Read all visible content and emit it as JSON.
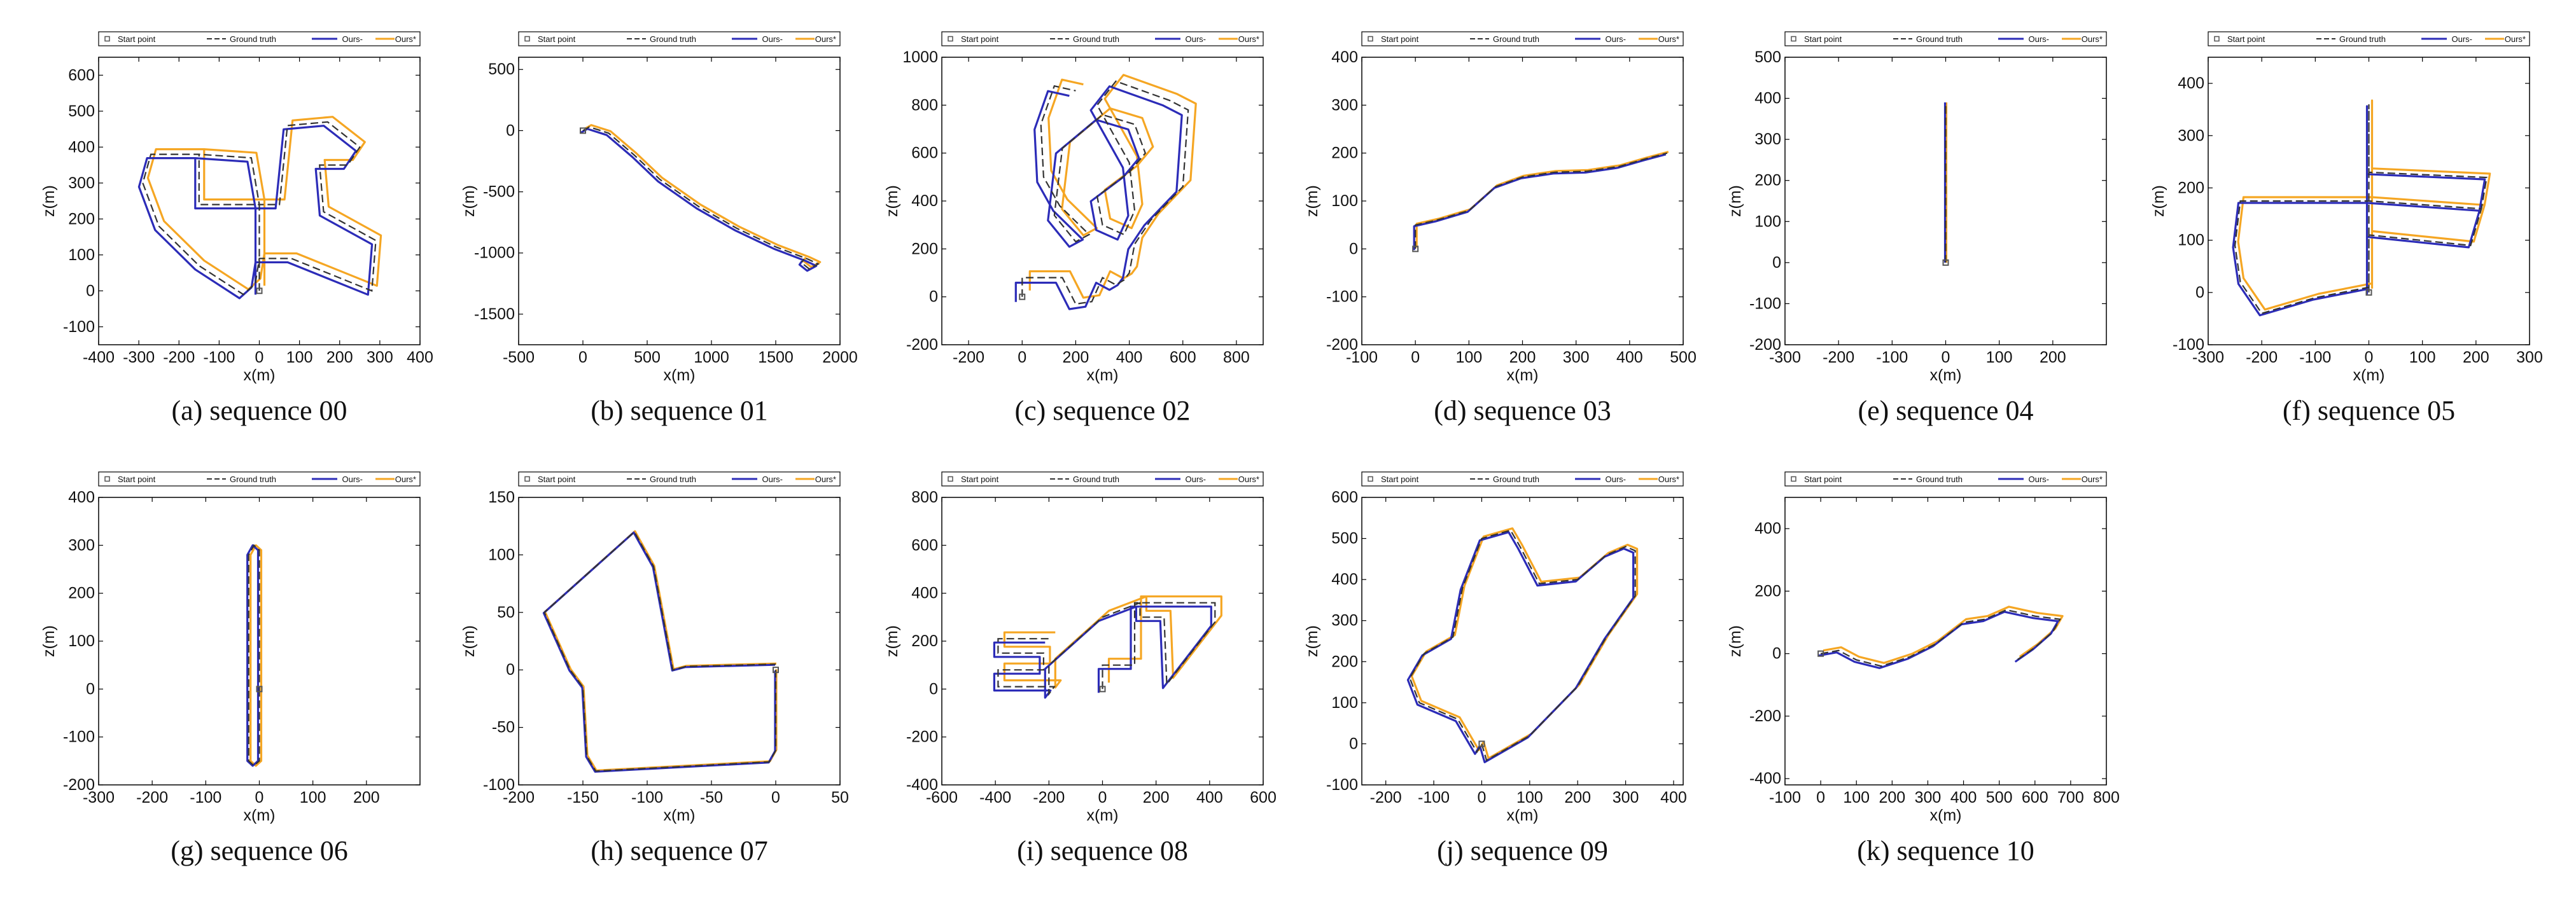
{
  "legend": {
    "start": "Start point",
    "gt": "Ground truth",
    "ours_minus": "Ours-",
    "ours_star": "Ours*"
  },
  "colors": {
    "gt": "#333333",
    "ours_minus": "#2c2cb8",
    "ours_star": "#f5a623",
    "start": "#555555"
  },
  "chart_data": [
    {
      "type": "line",
      "caption": "(a) sequence 00",
      "xlabel": "x(m)",
      "ylabel": "z(m)",
      "xlim": [
        -400,
        400
      ],
      "ylim": [
        -150,
        650
      ],
      "xticks": [
        -400,
        -300,
        -200,
        -100,
        0,
        100,
        200,
        300,
        400
      ],
      "yticks": [
        -100,
        0,
        100,
        200,
        300,
        400,
        500,
        600
      ],
      "start": [
        0,
        0
      ],
      "path": [
        [
          0,
          0
        ],
        [
          0,
          90
        ],
        [
          0,
          240
        ],
        [
          -150,
          240
        ],
        [
          -150,
          380
        ],
        [
          -270,
          380
        ],
        [
          -290,
          300
        ],
        [
          -250,
          180
        ],
        [
          -150,
          70
        ],
        [
          -40,
          -10
        ],
        [
          -10,
          20
        ],
        [
          0,
          90
        ],
        [
          80,
          90
        ],
        [
          280,
          0
        ],
        [
          290,
          140
        ],
        [
          160,
          220
        ],
        [
          150,
          350
        ],
        [
          220,
          350
        ],
        [
          250,
          400
        ],
        [
          170,
          470
        ],
        [
          70,
          460
        ],
        [
          50,
          240
        ],
        [
          0,
          240
        ],
        [
          -20,
          370
        ],
        [
          -150,
          380
        ]
      ],
      "offsets": {
        "ours_minus": [
          -6,
          6
        ],
        "ours_star": [
          8,
          -8
        ]
      }
    },
    {
      "type": "line",
      "caption": "(b) sequence 01",
      "xlabel": "x(m)",
      "ylabel": "z(m)",
      "xlim": [
        -500,
        2000
      ],
      "ylim": [
        -1750,
        600
      ],
      "xticks": [
        -500,
        0,
        500,
        1000,
        1500,
        2000
      ],
      "yticks": [
        -1500,
        -1000,
        -500,
        0,
        500
      ],
      "start": [
        0,
        0
      ],
      "path": [
        [
          0,
          0
        ],
        [
          50,
          30
        ],
        [
          200,
          -20
        ],
        [
          400,
          -200
        ],
        [
          600,
          -400
        ],
        [
          900,
          -620
        ],
        [
          1200,
          -800
        ],
        [
          1500,
          -950
        ],
        [
          1750,
          -1050
        ],
        [
          1830,
          -1090
        ],
        [
          1760,
          -1130
        ],
        [
          1700,
          -1080
        ],
        [
          1720,
          -1050
        ]
      ],
      "offsets": {
        "ours_minus": [
          -3,
          3
        ],
        "ours_star": [
          3,
          -3
        ]
      }
    },
    {
      "type": "line",
      "caption": "(c) sequence 02",
      "xlabel": "x(m)",
      "ylabel": "z(m)",
      "xlim": [
        -300,
        900
      ],
      "ylim": [
        -200,
        1000
      ],
      "xticks": [
        -200,
        0,
        200,
        400,
        600,
        800
      ],
      "yticks": [
        -200,
        0,
        200,
        400,
        600,
        800,
        1000
      ],
      "start": [
        0,
        0
      ],
      "path": [
        [
          0,
          0
        ],
        [
          0,
          80
        ],
        [
          150,
          80
        ],
        [
          200,
          -30
        ],
        [
          260,
          -20
        ],
        [
          300,
          80
        ],
        [
          350,
          50
        ],
        [
          380,
          70
        ],
        [
          400,
          100
        ],
        [
          420,
          220
        ],
        [
          480,
          320
        ],
        [
          600,
          460
        ],
        [
          620,
          780
        ],
        [
          550,
          820
        ],
        [
          350,
          900
        ],
        [
          280,
          800
        ],
        [
          400,
          560
        ],
        [
          420,
          360
        ],
        [
          380,
          260
        ],
        [
          300,
          300
        ],
        [
          280,
          420
        ],
        [
          400,
          520
        ],
        [
          460,
          600
        ],
        [
          420,
          720
        ],
        [
          300,
          760
        ],
        [
          150,
          620
        ],
        [
          120,
          340
        ],
        [
          200,
          230
        ],
        [
          250,
          260
        ],
        [
          140,
          380
        ],
        [
          80,
          500
        ],
        [
          70,
          720
        ],
        [
          120,
          880
        ],
        [
          200,
          860
        ]
      ],
      "offsets": {
        "ours_minus": [
          -10,
          8
        ],
        "ours_star": [
          12,
          -10
        ]
      }
    },
    {
      "type": "line",
      "caption": "(d) sequence 03",
      "xlabel": "x(m)",
      "ylabel": "z(m)",
      "xlim": [
        -100,
        500
      ],
      "ylim": [
        -200,
        400
      ],
      "xticks": [
        -100,
        0,
        100,
        200,
        300,
        400,
        500
      ],
      "yticks": [
        -200,
        -100,
        0,
        100,
        200,
        300,
        400
      ],
      "start": [
        0,
        0
      ],
      "path": [
        [
          0,
          0
        ],
        [
          0,
          50
        ],
        [
          40,
          60
        ],
        [
          100,
          80
        ],
        [
          150,
          130
        ],
        [
          200,
          150
        ],
        [
          260,
          160
        ],
        [
          320,
          162
        ],
        [
          380,
          172
        ],
        [
          430,
          188
        ],
        [
          470,
          200
        ]
      ],
      "offsets": {
        "ours_minus": [
          -2,
          2
        ],
        "ours_star": [
          2,
          -2
        ]
      }
    },
    {
      "type": "line",
      "caption": "(e) sequence 04",
      "xlabel": "x(m)",
      "ylabel": "z(m)",
      "xlim": [
        -300,
        300
      ],
      "ylim": [
        -200,
        500
      ],
      "xticks": [
        -300,
        -200,
        -100,
        0,
        100,
        200
      ],
      "yticks": [
        -200,
        -100,
        0,
        100,
        200,
        300,
        400,
        500
      ],
      "start": [
        0,
        0
      ],
      "path": [
        [
          0,
          0
        ],
        [
          0,
          100
        ],
        [
          0,
          200
        ],
        [
          0,
          300
        ],
        [
          0,
          390
        ]
      ],
      "offsets": {
        "ours_minus": [
          -1,
          0
        ],
        "ours_star": [
          1,
          0
        ]
      }
    },
    {
      "type": "line",
      "caption": "(f) sequence 05",
      "xlabel": "x(m)",
      "ylabel": "z(m)",
      "xlim": [
        -300,
        300
      ],
      "ylim": [
        -100,
        450
      ],
      "xticks": [
        -300,
        -200,
        -100,
        0,
        100,
        200,
        300
      ],
      "yticks": [
        -100,
        0,
        100,
        200,
        300,
        400
      ],
      "start": [
        0,
        0
      ],
      "path": [
        [
          0,
          0
        ],
        [
          0,
          180
        ],
        [
          0,
          360
        ],
        [
          0,
          230
        ],
        [
          220,
          220
        ],
        [
          210,
          160
        ],
        [
          0,
          175
        ],
        [
          -240,
          175
        ],
        [
          -250,
          90
        ],
        [
          -240,
          20
        ],
        [
          -200,
          -40
        ],
        [
          -100,
          -10
        ],
        [
          0,
          10
        ],
        [
          0,
          110
        ],
        [
          190,
          90
        ],
        [
          210,
          160
        ]
      ],
      "offsets": {
        "ours_minus": [
          -3,
          3
        ],
        "ours_star": [
          5,
          -6
        ]
      }
    },
    {
      "type": "line",
      "caption": "(g) sequence 06",
      "xlabel": "x(m)",
      "ylabel": "z(m)",
      "xlim": [
        -300,
        300
      ],
      "ylim": [
        -200,
        400
      ],
      "xticks": [
        -300,
        -200,
        -100,
        0,
        100,
        200
      ],
      "yticks": [
        -200,
        -100,
        0,
        100,
        200,
        300,
        400
      ],
      "start": [
        0,
        0
      ],
      "path": [
        [
          0,
          0
        ],
        [
          0,
          -150
        ],
        [
          -10,
          -160
        ],
        [
          -20,
          -150
        ],
        [
          -20,
          280
        ],
        [
          -10,
          300
        ],
        [
          0,
          290
        ],
        [
          0,
          0
        ]
      ],
      "offsets": {
        "ours_minus": [
          -2,
          0
        ],
        "ours_star": [
          3,
          0
        ]
      }
    },
    {
      "type": "line",
      "caption": "(h) sequence 07",
      "xlabel": "x(m)",
      "ylabel": "z(m)",
      "xlim": [
        -200,
        50
      ],
      "ylim": [
        -100,
        150
      ],
      "xticks": [
        -200,
        -150,
        -100,
        -50,
        0,
        50
      ],
      "yticks": [
        -100,
        -50,
        0,
        50,
        100,
        150
      ],
      "start": [
        0,
        0
      ],
      "path": [
        [
          0,
          0
        ],
        [
          0,
          -70
        ],
        [
          -5,
          -80
        ],
        [
          -140,
          -88
        ],
        [
          -147,
          -75
        ],
        [
          -150,
          -15
        ],
        [
          -160,
          0
        ],
        [
          -180,
          50
        ],
        [
          -110,
          120
        ],
        [
          -95,
          90
        ],
        [
          -80,
          0
        ],
        [
          -70,
          3
        ],
        [
          0,
          5
        ]
      ],
      "offsets": {
        "ours_minus": [
          -1,
          1
        ],
        "ours_star": [
          1,
          -1
        ]
      }
    },
    {
      "type": "line",
      "caption": "(i) sequence 08",
      "xlabel": "x(m)",
      "ylabel": "z(m)",
      "xlim": [
        -600,
        600
      ],
      "ylim": [
        -400,
        800
      ],
      "xticks": [
        -600,
        -400,
        -200,
        0,
        200,
        400,
        600
      ],
      "yticks": [
        -400,
        -200,
        0,
        200,
        400,
        600,
        800
      ],
      "start": [
        0,
        0
      ],
      "path": [
        [
          0,
          0
        ],
        [
          0,
          100
        ],
        [
          120,
          100
        ],
        [
          120,
          360
        ],
        [
          420,
          360
        ],
        [
          420,
          280
        ],
        [
          240,
          20
        ],
        [
          230,
          300
        ],
        [
          140,
          300
        ],
        [
          140,
          360
        ],
        [
          0,
          300
        ],
        [
          -200,
          100
        ],
        [
          -200,
          -20
        ],
        [
          -180,
          10
        ],
        [
          -390,
          10
        ],
        [
          -390,
          80
        ],
        [
          -220,
          80
        ],
        [
          -220,
          150
        ],
        [
          -390,
          150
        ],
        [
          -390,
          210
        ],
        [
          -200,
          210
        ]
      ],
      "offsets": {
        "ours_minus": [
          -6,
          6
        ],
        "ours_star": [
          10,
          -10
        ]
      }
    },
    {
      "type": "line",
      "caption": "(j) sequence 09",
      "xlabel": "x(m)",
      "ylabel": "z(m)",
      "xlim": [
        -250,
        420
      ],
      "ylim": [
        -100,
        600
      ],
      "xticks": [
        -200,
        -100,
        0,
        100,
        200,
        300,
        400
      ],
      "yticks": [
        -100,
        0,
        100,
        200,
        300,
        400,
        500,
        600
      ],
      "start": [
        0,
        0
      ],
      "path": [
        [
          0,
          0
        ],
        [
          10,
          -40
        ],
        [
          100,
          20
        ],
        [
          200,
          140
        ],
        [
          260,
          260
        ],
        [
          320,
          360
        ],
        [
          320,
          470
        ],
        [
          300,
          480
        ],
        [
          260,
          460
        ],
        [
          200,
          400
        ],
        [
          120,
          390
        ],
        [
          80,
          480
        ],
        [
          60,
          520
        ],
        [
          0,
          500
        ],
        [
          -40,
          380
        ],
        [
          -60,
          260
        ],
        [
          -120,
          220
        ],
        [
          -150,
          160
        ],
        [
          -130,
          100
        ],
        [
          -50,
          60
        ],
        [
          -10,
          -20
        ],
        [
          0,
          0
        ]
      ],
      "offsets": {
        "ours_minus": [
          -3,
          3
        ],
        "ours_star": [
          3,
          -3
        ]
      }
    },
    {
      "type": "line",
      "caption": "(k) sequence 10",
      "xlabel": "x(m)",
      "ylabel": "z(m)",
      "xlim": [
        -100,
        800
      ],
      "ylim": [
        -420,
        500
      ],
      "xticks": [
        -100,
        0,
        100,
        200,
        300,
        400,
        500,
        600,
        700,
        800
      ],
      "yticks": [
        -400,
        -200,
        0,
        200,
        400
      ],
      "start": [
        0,
        0
      ],
      "path": [
        [
          0,
          0
        ],
        [
          50,
          10
        ],
        [
          100,
          -20
        ],
        [
          170,
          -40
        ],
        [
          250,
          -10
        ],
        [
          320,
          30
        ],
        [
          400,
          100
        ],
        [
          460,
          110
        ],
        [
          520,
          140
        ],
        [
          600,
          120
        ],
        [
          670,
          110
        ],
        [
          650,
          70
        ],
        [
          600,
          20
        ],
        [
          550,
          -20
        ]
      ],
      "offsets": {
        "ours_minus": [
          -3,
          3
        ],
        "ours_star": [
          4,
          -5
        ]
      }
    }
  ]
}
